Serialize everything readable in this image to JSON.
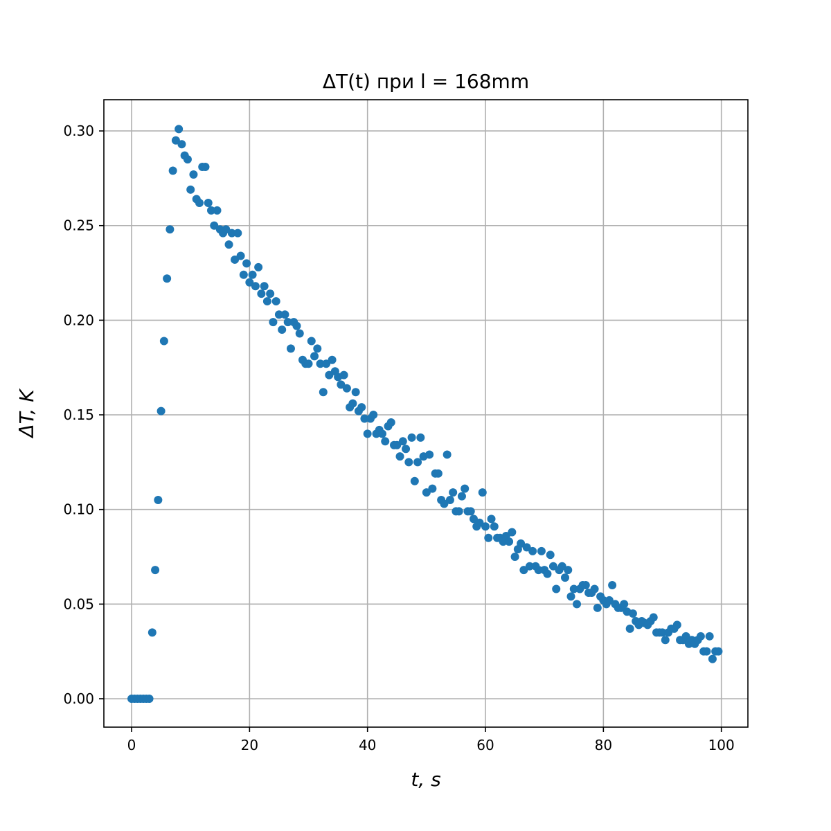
{
  "chart_data": {
    "type": "scatter",
    "title": "ΔT(t) при l = 168mm",
    "xlabel": "t, s",
    "ylabel": "ΔT, K",
    "xlim": [
      -4.7,
      104.5
    ],
    "ylim": [
      -0.015,
      0.3165
    ],
    "xticks": [
      0,
      20,
      40,
      60,
      80,
      100
    ],
    "xtick_labels": [
      "0",
      "20",
      "40",
      "60",
      "80",
      "100"
    ],
    "yticks": [
      0.0,
      0.05,
      0.1,
      0.15,
      0.2,
      0.25,
      0.3
    ],
    "ytick_labels": [
      "0.00",
      "0.05",
      "0.10",
      "0.15",
      "0.20",
      "0.25",
      "0.30"
    ],
    "grid": true,
    "marker_color": "#1f77b4",
    "series": [
      {
        "x": [
          0.0,
          0.5,
          1.0,
          1.5,
          2.0,
          2.5,
          3.0,
          3.5,
          4.0,
          4.5,
          5.0,
          5.5,
          6.0,
          6.5,
          7.0,
          7.5,
          8.0,
          8.5,
          9.0,
          9.5,
          10.0,
          10.5,
          11.0,
          11.5,
          12.0,
          12.5,
          13.0,
          13.5,
          14.0,
          14.5,
          15.0,
          15.5,
          16.0,
          16.5,
          17.0,
          17.5,
          18.0,
          18.5,
          19.0,
          19.5,
          20.0,
          20.5,
          21.0,
          21.5,
          22.0,
          22.5,
          23.0,
          23.5,
          24.0,
          24.5,
          25.0,
          25.5,
          26.0,
          26.5,
          27.0,
          27.5,
          28.0,
          28.5,
          29.0,
          29.5,
          30.0,
          30.5,
          31.0,
          31.5,
          32.0,
          32.5,
          33.0,
          33.5,
          34.0,
          34.5,
          35.0,
          35.5,
          36.0,
          36.5,
          37.0,
          37.5,
          38.0,
          38.5,
          39.0,
          39.5,
          40.0,
          40.5,
          41.0,
          41.5,
          42.0,
          42.5,
          43.0,
          43.5,
          44.0,
          44.5,
          45.0,
          45.5,
          46.0,
          46.5,
          47.0,
          47.5,
          48.0,
          48.5,
          49.0,
          49.5,
          50.0,
          50.5,
          51.0,
          51.5,
          52.0,
          52.5,
          53.0,
          53.5,
          54.0,
          54.5,
          55.0,
          55.5,
          56.0,
          56.5,
          57.0,
          57.5,
          58.0,
          58.5,
          59.0,
          59.5,
          60.0,
          60.5,
          61.0,
          61.5,
          62.0,
          62.5,
          63.0,
          63.5,
          64.0,
          64.5,
          65.0,
          65.5,
          66.0,
          66.5,
          67.0,
          67.5,
          68.0,
          68.5,
          69.0,
          69.5,
          70.0,
          70.5,
          71.0,
          71.5,
          72.0,
          72.5,
          73.0,
          73.5,
          74.0,
          74.5,
          75.0,
          75.5,
          76.0,
          76.5,
          77.0,
          77.5,
          78.0,
          78.5,
          79.0,
          79.5,
          80.0,
          80.5,
          81.0,
          81.5,
          82.0,
          82.5,
          83.0,
          83.5,
          84.0,
          84.5,
          85.0,
          85.5,
          86.0,
          86.5,
          87.0,
          87.5,
          88.0,
          88.5,
          89.0,
          89.5,
          90.0,
          90.5,
          91.0,
          91.5,
          92.0,
          92.5,
          93.0,
          93.5,
          94.0,
          94.5,
          95.0,
          95.5,
          96.0,
          96.5,
          97.0,
          97.5,
          98.0,
          98.5,
          99.0,
          99.5
        ],
        "y": [
          0.0,
          0.0,
          0.0,
          0.0,
          0.0,
          0.0,
          0.0,
          0.035,
          0.068,
          0.105,
          0.152,
          0.189,
          0.222,
          0.248,
          0.279,
          0.295,
          0.301,
          0.293,
          0.287,
          0.285,
          0.269,
          0.277,
          0.264,
          0.262,
          0.281,
          0.281,
          0.262,
          0.258,
          0.25,
          0.258,
          0.248,
          0.246,
          0.248,
          0.24,
          0.246,
          0.232,
          0.246,
          0.234,
          0.224,
          0.23,
          0.22,
          0.224,
          0.218,
          0.228,
          0.214,
          0.218,
          0.21,
          0.214,
          0.199,
          0.21,
          0.203,
          0.195,
          0.203,
          0.199,
          0.185,
          0.199,
          0.197,
          0.193,
          0.179,
          0.177,
          0.177,
          0.189,
          0.181,
          0.185,
          0.177,
          0.162,
          0.177,
          0.171,
          0.179,
          0.173,
          0.17,
          0.166,
          0.171,
          0.164,
          0.154,
          0.156,
          0.162,
          0.152,
          0.154,
          0.148,
          0.14,
          0.148,
          0.15,
          0.14,
          0.142,
          0.14,
          0.136,
          0.144,
          0.146,
          0.134,
          0.134,
          0.128,
          0.136,
          0.132,
          0.125,
          0.138,
          0.115,
          0.125,
          0.138,
          0.128,
          0.109,
          0.129,
          0.111,
          0.119,
          0.119,
          0.105,
          0.103,
          0.129,
          0.105,
          0.109,
          0.099,
          0.099,
          0.107,
          0.111,
          0.099,
          0.099,
          0.095,
          0.091,
          0.093,
          0.109,
          0.091,
          0.085,
          0.095,
          0.091,
          0.085,
          0.085,
          0.083,
          0.086,
          0.083,
          0.088,
          0.075,
          0.079,
          0.082,
          0.068,
          0.08,
          0.07,
          0.078,
          0.07,
          0.068,
          0.078,
          0.068,
          0.066,
          0.076,
          0.07,
          0.058,
          0.068,
          0.07,
          0.064,
          0.068,
          0.054,
          0.058,
          0.05,
          0.058,
          0.06,
          0.06,
          0.056,
          0.056,
          0.058,
          0.048,
          0.054,
          0.052,
          0.05,
          0.052,
          0.06,
          0.05,
          0.048,
          0.048,
          0.05,
          0.046,
          0.037,
          0.045,
          0.041,
          0.039,
          0.041,
          0.04,
          0.039,
          0.041,
          0.043,
          0.035,
          0.035,
          0.035,
          0.031,
          0.035,
          0.037,
          0.037,
          0.039,
          0.031,
          0.031,
          0.033,
          0.029,
          0.031,
          0.029,
          0.031,
          0.033,
          0.025,
          0.025,
          0.033,
          0.021,
          0.025,
          0.025
        ]
      }
    ]
  }
}
